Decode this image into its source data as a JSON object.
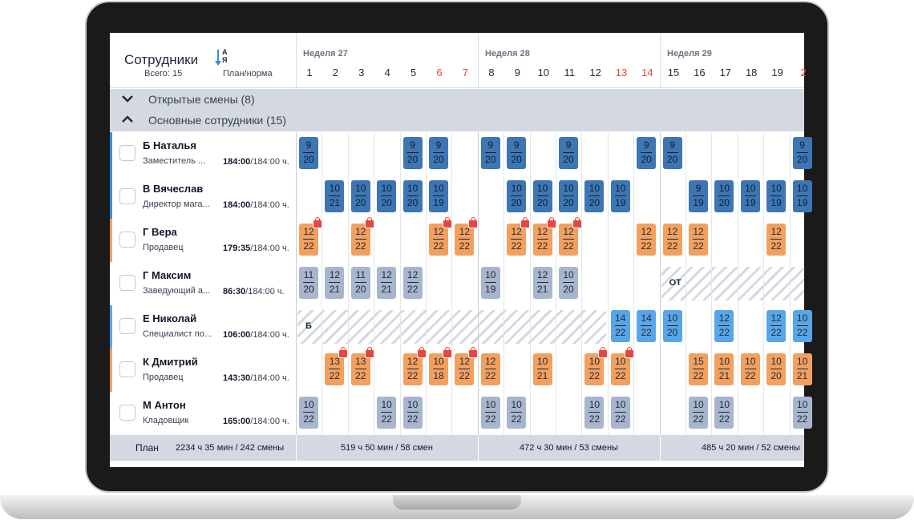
{
  "header": {
    "title": "Сотрудники",
    "total": "Всего: 15",
    "plan_norm": "План/норма",
    "sort_letters": "А\nЯ"
  },
  "weeks": [
    {
      "label": "Неделя 27",
      "days": [
        "1",
        "2",
        "3",
        "4",
        "5",
        "6",
        "7"
      ],
      "weekend": [
        false,
        false,
        false,
        false,
        false,
        true,
        true
      ]
    },
    {
      "label": "Неделя 28",
      "days": [
        "8",
        "9",
        "10",
        "11",
        "12",
        "13",
        "14"
      ],
      "weekend": [
        false,
        false,
        false,
        false,
        false,
        true,
        true
      ]
    },
    {
      "label": "Неделя 29",
      "days": [
        "15",
        "16",
        "17",
        "18",
        "19",
        "2"
      ],
      "weekend": [
        false,
        false,
        false,
        false,
        false,
        true
      ]
    }
  ],
  "groups": {
    "open_shifts": "Открытые смены (8)",
    "main_staff": "Основные сотрудники (15)"
  },
  "colors": {
    "dark_blue": "#3d76b3",
    "light_blue": "#58a6e8",
    "orange": "#f3a05f",
    "gray": "#a7b6cd",
    "weekend": "#e8453c"
  },
  "employees": [
    {
      "name": "Б Наталья",
      "role": "Заместитель ...",
      "plan": "184:00",
      "norm": "/184:00 ч.",
      "stripe": "#3b8ed8",
      "shifts": [
        [
          0,
          "9",
          "20",
          "db",
          false
        ],
        [
          4,
          "9",
          "20",
          "db",
          false
        ],
        [
          5,
          "9",
          "20",
          "db",
          false
        ],
        [
          7,
          "9",
          "20",
          "db",
          false
        ],
        [
          8,
          "9",
          "20",
          "db",
          false
        ],
        [
          10,
          "9",
          "20",
          "db",
          false
        ],
        [
          13,
          "9",
          "20",
          "db",
          false
        ],
        [
          14,
          "9",
          "20",
          "db",
          false
        ],
        [
          19,
          "9",
          "20",
          "db",
          false
        ]
      ]
    },
    {
      "name": "В Вячеслав",
      "role": "Директор мага...",
      "plan": "184:00",
      "norm": "/184:00 ч.",
      "stripe": "#3b8ed8",
      "shifts": [
        [
          1,
          "10",
          "21",
          "db",
          false
        ],
        [
          2,
          "10",
          "20",
          "db",
          false
        ],
        [
          3,
          "10",
          "20",
          "db",
          false
        ],
        [
          4,
          "10",
          "20",
          "db",
          false
        ],
        [
          5,
          "10",
          "19",
          "db",
          false
        ],
        [
          8,
          "10",
          "20",
          "db",
          false
        ],
        [
          9,
          "10",
          "20",
          "db",
          false
        ],
        [
          10,
          "10",
          "20",
          "db",
          false
        ],
        [
          11,
          "10",
          "20",
          "db",
          false
        ],
        [
          12,
          "10",
          "19",
          "db",
          false
        ],
        [
          15,
          "9",
          "19",
          "db",
          false
        ],
        [
          16,
          "10",
          "20",
          "db",
          false
        ],
        [
          17,
          "10",
          "19",
          "db",
          false
        ],
        [
          18,
          "10",
          "19",
          "db",
          false
        ],
        [
          19,
          "10",
          "19",
          "db",
          false
        ]
      ]
    },
    {
      "name": "Г Вера",
      "role": "Продавец",
      "plan": "179:35",
      "norm": "/184:00 ч.",
      "stripe": "#f3a05f",
      "shifts": [
        [
          0,
          "12",
          "22",
          "or",
          true
        ],
        [
          2,
          "12",
          "22",
          "or",
          true
        ],
        [
          5,
          "12",
          "22",
          "or",
          true
        ],
        [
          6,
          "12",
          "22",
          "or",
          true
        ],
        [
          8,
          "12",
          "22",
          "or",
          true
        ],
        [
          9,
          "12",
          "22",
          "or",
          true
        ],
        [
          10,
          "12",
          "22",
          "or",
          true
        ],
        [
          13,
          "12",
          "22",
          "or",
          false
        ],
        [
          14,
          "12",
          "22",
          "or",
          false
        ],
        [
          15,
          "12",
          "22",
          "or",
          false
        ],
        [
          18,
          "12",
          "22",
          "or",
          false
        ]
      ]
    },
    {
      "name": "Г Максим",
      "role": "Заведующий а...",
      "plan": "86:30",
      "norm": "/184:00 ч.",
      "stripe": "#ffffff",
      "shifts": [
        [
          0,
          "11",
          "20",
          "gr",
          false
        ],
        [
          1,
          "12",
          "21",
          "gr",
          false
        ],
        [
          2,
          "11",
          "20",
          "gr",
          false
        ],
        [
          3,
          "12",
          "21",
          "gr",
          false
        ],
        [
          4,
          "12",
          "22",
          "gr",
          false
        ],
        [
          7,
          "10",
          "19",
          "gr",
          false
        ],
        [
          9,
          "12",
          "21",
          "gr",
          false
        ],
        [
          10,
          "10",
          "20",
          "gr",
          false
        ]
      ],
      "absence": {
        "from": 14,
        "to": 19,
        "label": "ОТ"
      }
    },
    {
      "name": "Е Николай",
      "role": "Специалист по...",
      "plan": "106:00",
      "norm": "/184:00 ч.",
      "stripe": "#58a6e8",
      "shifts": [
        [
          12,
          "14",
          "22",
          "lb",
          false
        ],
        [
          13,
          "14",
          "22",
          "lb",
          false
        ],
        [
          14,
          "10",
          "20",
          "lb",
          false
        ],
        [
          16,
          "12",
          "22",
          "lb",
          false
        ],
        [
          18,
          "12",
          "22",
          "lb",
          false
        ],
        [
          19,
          "10",
          "22",
          "lb",
          false
        ]
      ],
      "absence": {
        "from": 0,
        "to": 11,
        "label": "Б"
      }
    },
    {
      "name": "К Дмитрий",
      "role": "Продавец",
      "plan": "143:30",
      "norm": "/184:00 ч.",
      "stripe": "#f3a05f",
      "shifts": [
        [
          1,
          "13",
          "22",
          "or",
          true
        ],
        [
          2,
          "13",
          "22",
          "or",
          true
        ],
        [
          4,
          "12",
          "22",
          "or",
          true
        ],
        [
          5,
          "10",
          "18",
          "or",
          true
        ],
        [
          6,
          "12",
          "22",
          "or",
          true
        ],
        [
          7,
          "12",
          "22",
          "or",
          false
        ],
        [
          9,
          "10",
          "21",
          "or",
          false
        ],
        [
          11,
          "10",
          "22",
          "or",
          true
        ],
        [
          12,
          "10",
          "22",
          "or",
          true
        ],
        [
          15,
          "15",
          "22",
          "or",
          false
        ],
        [
          16,
          "10",
          "21",
          "or",
          false
        ],
        [
          17,
          "10",
          "22",
          "or",
          false
        ],
        [
          18,
          "10",
          "20",
          "or",
          false
        ],
        [
          19,
          "10",
          "21",
          "or",
          false
        ]
      ]
    },
    {
      "name": "М Антон",
      "role": "Кладовщик",
      "plan": "165:00",
      "norm": "/184:00 ч.",
      "stripe": "#ffffff",
      "shifts": [
        [
          0,
          "10",
          "22",
          "gr",
          false
        ],
        [
          3,
          "10",
          "22",
          "gr",
          false
        ],
        [
          4,
          "10",
          "22",
          "gr",
          false
        ],
        [
          7,
          "10",
          "22",
          "gr",
          false
        ],
        [
          8,
          "10",
          "22",
          "gr",
          false
        ],
        [
          11,
          "10",
          "22",
          "gr",
          false
        ],
        [
          12,
          "10",
          "22",
          "gr",
          false
        ],
        [
          15,
          "10",
          "22",
          "gr",
          false
        ],
        [
          16,
          "10",
          "22",
          "gr",
          false
        ],
        [
          19,
          "10",
          "22",
          "gr",
          false
        ]
      ]
    }
  ],
  "footer": {
    "label": "План",
    "total": "2234 ч 35 мин / 242 смены",
    "weeks": [
      "519 ч 50 мин / 58 смен",
      "472 ч 30 мин / 53 смены",
      "485 ч 20 мин / 52 смены"
    ]
  }
}
